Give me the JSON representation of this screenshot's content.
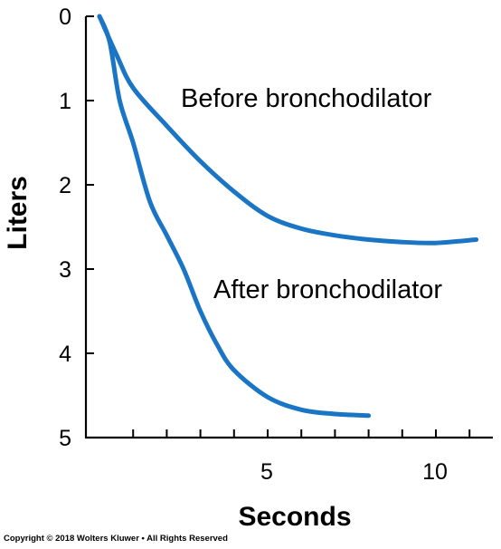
{
  "chart_data": {
    "type": "line",
    "xlabel": "Seconds",
    "ylabel": "Liters",
    "xlim": [
      0,
      11.5
    ],
    "ylim": [
      0,
      5
    ],
    "y_inverted": true,
    "x_ticks": [
      5,
      10
    ],
    "x_minor_ticks": [
      1,
      2,
      3,
      4,
      5,
      6,
      7,
      8,
      9,
      10,
      11
    ],
    "y_ticks": [
      0,
      1,
      2,
      3,
      4,
      5
    ],
    "grid": false,
    "legend": "none",
    "line_color": "#1a75c4",
    "series": [
      {
        "name": "Before bronchodilator",
        "points": [
          [
            0,
            0
          ],
          [
            0.5,
            0.45
          ],
          [
            1,
            0.85
          ],
          [
            2,
            1.3
          ],
          [
            3,
            1.72
          ],
          [
            4,
            2.08
          ],
          [
            5,
            2.37
          ],
          [
            6,
            2.52
          ],
          [
            7,
            2.6
          ],
          [
            8,
            2.65
          ],
          [
            9,
            2.68
          ],
          [
            10,
            2.69
          ],
          [
            11.2,
            2.65
          ]
        ]
      },
      {
        "name": "After bronchodilator",
        "points": [
          [
            0,
            0
          ],
          [
            0.3,
            0.3
          ],
          [
            0.6,
            1.0
          ],
          [
            1,
            1.5
          ],
          [
            1.5,
            2.2
          ],
          [
            2,
            2.6
          ],
          [
            2.5,
            3.0
          ],
          [
            3,
            3.5
          ],
          [
            3.5,
            3.9
          ],
          [
            4,
            4.2
          ],
          [
            5,
            4.52
          ],
          [
            6,
            4.67
          ],
          [
            7,
            4.72
          ],
          [
            8,
            4.74
          ]
        ]
      }
    ]
  },
  "copyright": "Copyright © 2018 Wolters Kluwer • All Rights Reserved"
}
